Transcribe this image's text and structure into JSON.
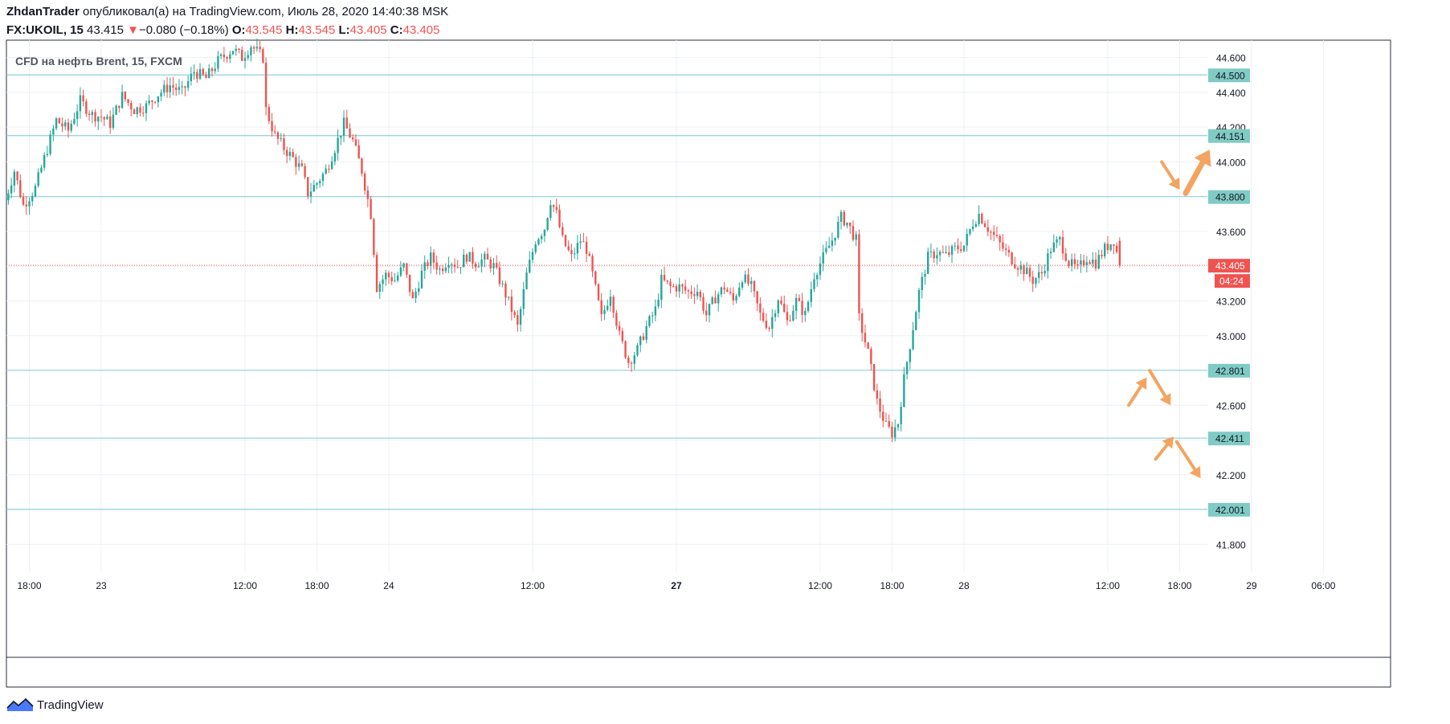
{
  "header": {
    "author": "ZhdanTrader",
    "published_text": "опубликовал(а) на TradingView.com, Июль 28, 2020 14:40:38 MSK",
    "symbol": "FX:UKOIL, 15",
    "last": "43.415",
    "change_arrow": "▼",
    "change": "−0.080 (−0.18%)",
    "o_label": "O:",
    "o": "43.545",
    "h_label": "H:",
    "h": "43.545",
    "l_label": "L:",
    "l": "43.405",
    "c_label": "C:",
    "c": "43.405"
  },
  "footer": {
    "brand": "TradingView"
  },
  "colors": {
    "up": "#26a69a",
    "down": "#ef5350",
    "level_line": "#8fd0d8",
    "level_badge": "#80cbc4",
    "arrow": "#f4a460",
    "grid": "#ecf0f4"
  },
  "chart_data": {
    "type": "candlestick",
    "title": "CFD на нефть Brent, 15, FXCM",
    "ylim": [
      41.64,
      44.7
    ],
    "y_ticks": [
      "44.600",
      "44.400",
      "44.200",
      "44.000",
      "43.800",
      "43.600",
      "43.400",
      "43.200",
      "43.000",
      "42.800",
      "42.600",
      "42.400",
      "42.200",
      "42.000",
      "41.800"
    ],
    "x_ticks": [
      {
        "label": "18:00",
        "bar": -24,
        "bold": false
      },
      {
        "label": "23",
        "bar": 0,
        "bold": false
      },
      {
        "label": "12:00",
        "bar": 48,
        "bold": false
      },
      {
        "label": "18:00",
        "bar": 72,
        "bold": false
      },
      {
        "label": "24",
        "bar": 96,
        "bold": false
      },
      {
        "label": "12:00",
        "bar": 144,
        "bold": false
      },
      {
        "label": "27",
        "bar": 192,
        "bold": true
      },
      {
        "label": "12:00",
        "bar": 240,
        "bold": false
      },
      {
        "label": "18:00",
        "bar": 264,
        "bold": false
      },
      {
        "label": "28",
        "bar": 288,
        "bold": false
      },
      {
        "label": "12:00",
        "bar": 336,
        "bold": false
      },
      {
        "label": "18:00",
        "bar": 360,
        "bold": false
      },
      {
        "label": "29",
        "bar": 384,
        "bold": false
      },
      {
        "label": "06:00",
        "bar": 408,
        "bold": false
      }
    ],
    "levels": [
      {
        "value": 44.5,
        "label": "44.500"
      },
      {
        "value": 44.151,
        "label": "44.151"
      },
      {
        "value": 43.8,
        "label": "43.800"
      },
      {
        "value": 42.801,
        "label": "42.801"
      },
      {
        "value": 42.411,
        "label": "42.411"
      },
      {
        "value": 42.001,
        "label": "42.001"
      }
    ],
    "last_price": {
      "value": 43.405,
      "label": "43.405",
      "countdown": "04:24"
    },
    "anchors": [
      {
        "bar": -32,
        "price": 43.78
      },
      {
        "bar": -29,
        "price": 43.95
      },
      {
        "bar": -26,
        "price": 43.75
      },
      {
        "bar": -22,
        "price": 43.85
      },
      {
        "bar": -19,
        "price": 44.02
      },
      {
        "bar": -15,
        "price": 44.24
      },
      {
        "bar": -11,
        "price": 44.18
      },
      {
        "bar": -7,
        "price": 44.35
      },
      {
        "bar": -3,
        "price": 44.27
      },
      {
        "bar": 0,
        "price": 44.26
      },
      {
        "bar": 3,
        "price": 44.22
      },
      {
        "bar": 7,
        "price": 44.38
      },
      {
        "bar": 11,
        "price": 44.3
      },
      {
        "bar": 15,
        "price": 44.32
      },
      {
        "bar": 19,
        "price": 44.39
      },
      {
        "bar": 23,
        "price": 44.44
      },
      {
        "bar": 27,
        "price": 44.4
      },
      {
        "bar": 31,
        "price": 44.52
      },
      {
        "bar": 35,
        "price": 44.48
      },
      {
        "bar": 39,
        "price": 44.58
      },
      {
        "bar": 44,
        "price": 44.65
      },
      {
        "bar": 47,
        "price": 44.6
      },
      {
        "bar": 50,
        "price": 44.67
      },
      {
        "bar": 54,
        "price": 44.6
      },
      {
        "bar": 55,
        "price": 44.3
      },
      {
        "bar": 58,
        "price": 44.15
      },
      {
        "bar": 61,
        "price": 44.08
      },
      {
        "bar": 64,
        "price": 44.02
      },
      {
        "bar": 67,
        "price": 43.95
      },
      {
        "bar": 69,
        "price": 43.82
      },
      {
        "bar": 72,
        "price": 43.88
      },
      {
        "bar": 75,
        "price": 43.95
      },
      {
        "bar": 78,
        "price": 44.08
      },
      {
        "bar": 81,
        "price": 44.22
      },
      {
        "bar": 84,
        "price": 44.12
      },
      {
        "bar": 87,
        "price": 43.95
      },
      {
        "bar": 90,
        "price": 43.7
      },
      {
        "bar": 92,
        "price": 43.28
      },
      {
        "bar": 95,
        "price": 43.35
      },
      {
        "bar": 98,
        "price": 43.32
      },
      {
        "bar": 101,
        "price": 43.4
      },
      {
        "bar": 104,
        "price": 43.2
      },
      {
        "bar": 107,
        "price": 43.36
      },
      {
        "bar": 110,
        "price": 43.45
      },
      {
        "bar": 113,
        "price": 43.38
      },
      {
        "bar": 116,
        "price": 43.44
      },
      {
        "bar": 119,
        "price": 43.4
      },
      {
        "bar": 122,
        "price": 43.46
      },
      {
        "bar": 125,
        "price": 43.42
      },
      {
        "bar": 128,
        "price": 43.44
      },
      {
        "bar": 131,
        "price": 43.4
      },
      {
        "bar": 134,
        "price": 43.28
      },
      {
        "bar": 137,
        "price": 43.15
      },
      {
        "bar": 139,
        "price": 43.05
      },
      {
        "bar": 142,
        "price": 43.35
      },
      {
        "bar": 145,
        "price": 43.55
      },
      {
        "bar": 148,
        "price": 43.62
      },
      {
        "bar": 150,
        "price": 43.78
      },
      {
        "bar": 152,
        "price": 43.7
      },
      {
        "bar": 154,
        "price": 43.55
      },
      {
        "bar": 157,
        "price": 43.45
      },
      {
        "bar": 160,
        "price": 43.55
      },
      {
        "bar": 162,
        "price": 43.5
      },
      {
        "bar": 164,
        "price": 43.35
      },
      {
        "bar": 167,
        "price": 43.1
      },
      {
        "bar": 170,
        "price": 43.25
      },
      {
        "bar": 173,
        "price": 43.0
      },
      {
        "bar": 176,
        "price": 42.85
      },
      {
        "bar": 179,
        "price": 42.92
      },
      {
        "bar": 182,
        "price": 43.05
      },
      {
        "bar": 185,
        "price": 43.15
      },
      {
        "bar": 187,
        "price": 43.32
      },
      {
        "bar": 190,
        "price": 43.28
      },
      {
        "bar": 193,
        "price": 43.28
      },
      {
        "bar": 196,
        "price": 43.25
      },
      {
        "bar": 199,
        "price": 43.26
      },
      {
        "bar": 202,
        "price": 43.12
      },
      {
        "bar": 205,
        "price": 43.22
      },
      {
        "bar": 208,
        "price": 43.28
      },
      {
        "bar": 211,
        "price": 43.2
      },
      {
        "bar": 214,
        "price": 43.34
      },
      {
        "bar": 217,
        "price": 43.28
      },
      {
        "bar": 220,
        "price": 43.12
      },
      {
        "bar": 223,
        "price": 43.05
      },
      {
        "bar": 226,
        "price": 43.22
      },
      {
        "bar": 229,
        "price": 43.08
      },
      {
        "bar": 232,
        "price": 43.2
      },
      {
        "bar": 235,
        "price": 43.12
      },
      {
        "bar": 238,
        "price": 43.35
      },
      {
        "bar": 241,
        "price": 43.45
      },
      {
        "bar": 244,
        "price": 43.55
      },
      {
        "bar": 247,
        "price": 43.68
      },
      {
        "bar": 249,
        "price": 43.65
      },
      {
        "bar": 252,
        "price": 43.55
      },
      {
        "bar": 253,
        "price": 43.1
      },
      {
        "bar": 256,
        "price": 42.9
      },
      {
        "bar": 259,
        "price": 42.62
      },
      {
        "bar": 262,
        "price": 42.48
      },
      {
        "bar": 264,
        "price": 42.44
      },
      {
        "bar": 266,
        "price": 42.5
      },
      {
        "bar": 268,
        "price": 42.75
      },
      {
        "bar": 271,
        "price": 43.05
      },
      {
        "bar": 273,
        "price": 43.25
      },
      {
        "bar": 276,
        "price": 43.45
      },
      {
        "bar": 279,
        "price": 43.48
      },
      {
        "bar": 282,
        "price": 43.46
      },
      {
        "bar": 285,
        "price": 43.5
      },
      {
        "bar": 288,
        "price": 43.52
      },
      {
        "bar": 291,
        "price": 43.65
      },
      {
        "bar": 293,
        "price": 43.7
      },
      {
        "bar": 296,
        "price": 43.62
      },
      {
        "bar": 299,
        "price": 43.55
      },
      {
        "bar": 302,
        "price": 43.48
      },
      {
        "bar": 305,
        "price": 43.42
      },
      {
        "bar": 308,
        "price": 43.38
      },
      {
        "bar": 311,
        "price": 43.32
      },
      {
        "bar": 314,
        "price": 43.36
      },
      {
        "bar": 317,
        "price": 43.5
      },
      {
        "bar": 320,
        "price": 43.55
      },
      {
        "bar": 323,
        "price": 43.42
      },
      {
        "bar": 326,
        "price": 43.38
      },
      {
        "bar": 329,
        "price": 43.45
      },
      {
        "bar": 332,
        "price": 43.42
      },
      {
        "bar": 335,
        "price": 43.5
      },
      {
        "bar": 338,
        "price": 43.55
      },
      {
        "bar": 340,
        "price": 43.41
      }
    ],
    "arrows": [
      {
        "from": [
          354,
          44.0
        ],
        "to": [
          360,
          43.84
        ],
        "thick": false
      },
      {
        "from": [
          362,
          43.82
        ],
        "to": [
          370,
          44.07
        ],
        "thick": true
      },
      {
        "from": [
          343,
          42.6
        ],
        "to": [
          349,
          42.76
        ],
        "thick": false
      },
      {
        "from": [
          350,
          42.8
        ],
        "to": [
          357,
          42.6
        ],
        "thick": false
      },
      {
        "from": [
          352,
          42.29
        ],
        "to": [
          358,
          42.42
        ],
        "thick": false
      },
      {
        "from": [
          359,
          42.39
        ],
        "to": [
          367,
          42.18
        ],
        "thick": false
      }
    ]
  }
}
